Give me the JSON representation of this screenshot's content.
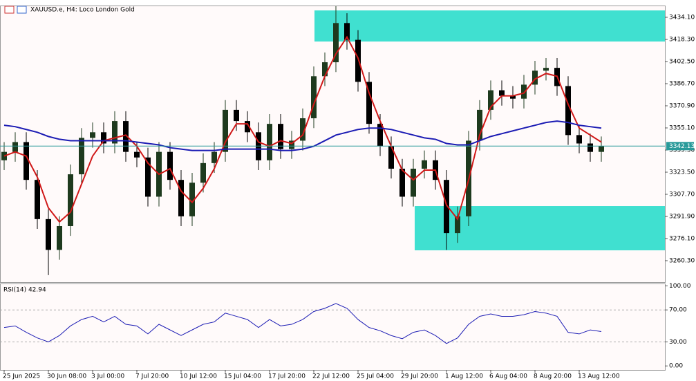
{
  "chart_data": [
    {
      "type": "candlestick",
      "title": "XAUUSD.e, H4:  Loco London Gold",
      "categories": [
        "25 Jun 2025",
        null,
        null,
        null,
        "30 Jun 08:00",
        null,
        null,
        null,
        "3 Jul 00:00",
        null,
        null,
        null,
        "7 Jul 20:00",
        null,
        null,
        null,
        "10 Jul 12:00",
        null,
        null,
        null,
        "15 Jul 04:00",
        null,
        null,
        null,
        "17 Jul 20:00",
        null,
        null,
        null,
        "22 Jul 12:00",
        null,
        null,
        null,
        "25 Jul 04:00",
        null,
        null,
        null,
        "29 Jul 20:00",
        null,
        null,
        null,
        "1 Aug 12:00",
        null,
        null,
        null,
        "6 Aug 04:00",
        null,
        null,
        null,
        "8 Aug 20:00",
        null,
        null,
        null,
        "13 Aug 12:00",
        null,
        null
      ],
      "open": [
        3332,
        3338,
        3345,
        3318,
        3290,
        3268,
        3285,
        3322,
        3348,
        3352,
        3344,
        3360,
        3338,
        3334,
        3306,
        3338,
        3318,
        3292,
        3316,
        3330,
        3338,
        3368,
        3360,
        3352,
        3332,
        3358,
        3340,
        3346,
        3362,
        3392,
        3402,
        3430,
        3418,
        3388,
        3358,
        3342,
        3326,
        3306,
        3326,
        3332,
        3318,
        3280,
        3292,
        3346,
        3368,
        3382,
        3378,
        3376,
        3386,
        3396,
        3398,
        3385,
        3350,
        3344,
        3338
      ],
      "high": [
        3345,
        3352,
        3352,
        3325,
        3297,
        3292,
        3329,
        3355,
        3359,
        3359,
        3367,
        3367,
        3345,
        3341,
        3345,
        3345,
        3325,
        3323,
        3337,
        3345,
        3375,
        3375,
        3367,
        3359,
        3365,
        3365,
        3353,
        3369,
        3399,
        3409,
        3442,
        3437,
        3425,
        3395,
        3365,
        3349,
        3333,
        3333,
        3339,
        3339,
        3325,
        3299,
        3353,
        3375,
        3389,
        3389,
        3385,
        3393,
        3403,
        3405,
        3405,
        3392,
        3357,
        3351,
        3349
      ],
      "low": [
        3325,
        3331,
        3311,
        3283,
        3250,
        3261,
        3278,
        3315,
        3341,
        3337,
        3337,
        3331,
        3327,
        3299,
        3299,
        3311,
        3285,
        3285,
        3309,
        3323,
        3331,
        3353,
        3345,
        3325,
        3325,
        3333,
        3333,
        3339,
        3355,
        3385,
        3395,
        3411,
        3381,
        3351,
        3335,
        3319,
        3299,
        3299,
        3319,
        3311,
        3268,
        3273,
        3285,
        3339,
        3361,
        3371,
        3369,
        3369,
        3379,
        3389,
        3378,
        3343,
        3337,
        3331,
        3331
      ],
      "close": [
        3338,
        3345,
        3318,
        3290,
        3268,
        3285,
        3322,
        3348,
        3352,
        3344,
        3360,
        3338,
        3334,
        3306,
        3338,
        3318,
        3292,
        3316,
        3330,
        3338,
        3368,
        3360,
        3352,
        3332,
        3358,
        3340,
        3346,
        3362,
        3392,
        3402,
        3430,
        3418,
        3388,
        3358,
        3342,
        3326,
        3306,
        3326,
        3332,
        3318,
        3280,
        3292,
        3346,
        3368,
        3382,
        3378,
        3376,
        3386,
        3396,
        3398,
        3385,
        3350,
        3344,
        3338,
        3342.13
      ],
      "bull_color": "#1e3a1e",
      "bear_color": "#000000",
      "series": [
        {
          "color": "#d01818",
          "values": [
            3335,
            3338,
            3335,
            3320,
            3298,
            3288,
            3295,
            3315,
            3335,
            3346,
            3348,
            3350,
            3342,
            3330,
            3322,
            3326,
            3310,
            3302,
            3312,
            3326,
            3345,
            3358,
            3358,
            3345,
            3342,
            3346,
            3344,
            3350,
            3372,
            3392,
            3408,
            3420,
            3405,
            3380,
            3360,
            3342,
            3325,
            3318,
            3325,
            3325,
            3300,
            3290,
            3318,
            3350,
            3370,
            3378,
            3378,
            3380,
            3390,
            3394,
            3392,
            3372,
            3355,
            3350,
            3345
          ]
        },
        {
          "color": "#1c1cb4",
          "values": [
            3357,
            3356,
            3354,
            3352,
            3349,
            3347,
            3346,
            3346,
            3346,
            3346,
            3346,
            3346,
            3345,
            3344,
            3343,
            3341,
            3340,
            3339,
            3339,
            3339,
            3340,
            3340,
            3340,
            3340,
            3340,
            3339,
            3339,
            3340,
            3342,
            3346,
            3350,
            3352,
            3354,
            3355,
            3355,
            3354,
            3352,
            3350,
            3348,
            3347,
            3344,
            3343,
            3343,
            3346,
            3349,
            3351,
            3353,
            3355,
            3357,
            3359,
            3360,
            3359,
            3357,
            3356,
            3355
          ]
        }
      ],
      "last_price": 3342.13,
      "last_price_color": "#2a9a9a",
      "zones": [
        {
          "top": 3439.0,
          "bottom": 3416.8,
          "color": "#40e0d0"
        },
        {
          "top": 3299.3,
          "bottom": 3267.7,
          "color": "#40e0d0"
        }
      ],
      "ylim": [
        3245.0,
        3442.5
      ],
      "yticks": [
        {
          "value": 3434.1,
          "label": "3434.10"
        },
        {
          "value": 3418.3,
          "label": "3418.30"
        },
        {
          "value": 3402.5,
          "label": "3402.50"
        },
        {
          "value": 3386.7,
          "label": "3386.70"
        },
        {
          "value": 3370.9,
          "label": "3370.90"
        },
        {
          "value": 3355.1,
          "label": "3355.10"
        },
        {
          "value": 3339.3,
          "label": "3339.30"
        },
        {
          "value": 3323.5,
          "label": "3323.50"
        },
        {
          "value": 3307.7,
          "label": "3307.70"
        },
        {
          "value": 3291.9,
          "label": "3291.90"
        },
        {
          "value": 3276.1,
          "label": "3276.10"
        },
        {
          "value": 3260.3,
          "label": "3260.30"
        }
      ]
    },
    {
      "type": "line",
      "title": "RSI(14) 42.94",
      "color": "#1c1cb4",
      "values": [
        48,
        50,
        42,
        35,
        30,
        38,
        50,
        58,
        62,
        55,
        62,
        52,
        50,
        40,
        52,
        45,
        38,
        45,
        52,
        55,
        66,
        62,
        58,
        48,
        58,
        50,
        52,
        58,
        68,
        72,
        78,
        72,
        58,
        48,
        44,
        38,
        34,
        42,
        45,
        38,
        28,
        35,
        52,
        62,
        65,
        62,
        62,
        64,
        68,
        66,
        62,
        42,
        40,
        45,
        42.94
      ],
      "ylim": [
        -5,
        103
      ],
      "yticks": [
        {
          "value": 100,
          "label": "100.00"
        },
        {
          "value": 70,
          "label": "70.00"
        },
        {
          "value": 30,
          "label": "30.00"
        },
        {
          "value": 0,
          "label": "0.00"
        }
      ],
      "grid_levels": [
        70,
        30
      ]
    }
  ]
}
